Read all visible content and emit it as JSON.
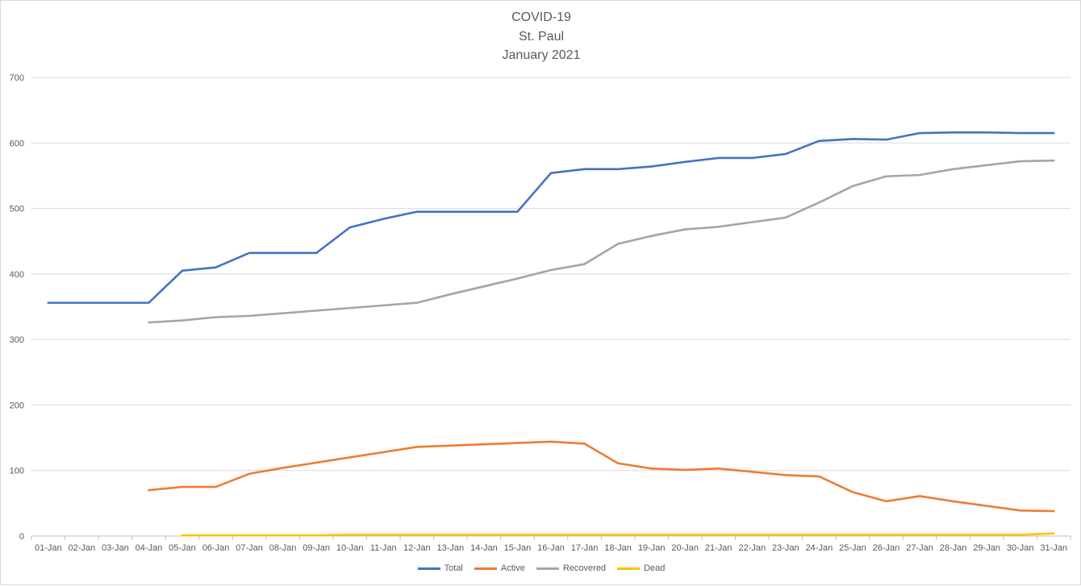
{
  "chart_data": {
    "type": "line",
    "title_lines": [
      "COVID-19",
      "St. Paul",
      "January 2021"
    ],
    "categories": [
      "01-Jan",
      "02-Jan",
      "03-Jan",
      "04-Jan",
      "05-Jan",
      "06-Jan",
      "07-Jan",
      "08-Jan",
      "09-Jan",
      "10-Jan",
      "11-Jan",
      "12-Jan",
      "13-Jan",
      "14-Jan",
      "15-Jan",
      "16-Jan",
      "17-Jan",
      "18-Jan",
      "19-Jan",
      "20-Jan",
      "21-Jan",
      "22-Jan",
      "23-Jan",
      "24-Jan",
      "25-Jan",
      "26-Jan",
      "27-Jan",
      "28-Jan",
      "29-Jan",
      "30-Jan",
      "31-Jan"
    ],
    "ylim": [
      0,
      700
    ],
    "yticks": [
      0,
      100,
      200,
      300,
      400,
      500,
      600,
      700
    ],
    "grid": true,
    "legend_position": "bottom",
    "series": [
      {
        "name": "Total",
        "color": "#4472c4",
        "values": [
          356,
          356,
          356,
          356,
          405,
          410,
          432,
          432,
          432,
          471,
          484,
          495,
          495,
          495,
          495,
          554,
          560,
          560,
          564,
          571,
          577,
          577,
          583,
          603,
          606,
          605,
          615,
          616,
          616,
          615,
          615
        ]
      },
      {
        "name": "Active",
        "color": "#ed7d31",
        "values": [
          null,
          null,
          null,
          70,
          75,
          75,
          95,
          104,
          112,
          120,
          128,
          136,
          138,
          140,
          142,
          144,
          141,
          111,
          103,
          101,
          103,
          98,
          93,
          91,
          67,
          53,
          61,
          53,
          46,
          39,
          38
        ]
      },
      {
        "name": "Recovered",
        "color": "#a5a5a5",
        "values": [
          null,
          null,
          null,
          326,
          329,
          334,
          336,
          340,
          344,
          348,
          352,
          356,
          369,
          381,
          393,
          406,
          415,
          446,
          458,
          468,
          472,
          479,
          486,
          509,
          534,
          549,
          551,
          560,
          566,
          572,
          573
        ]
      },
      {
        "name": "Dead",
        "color": "#ffc000",
        "values": [
          null,
          null,
          null,
          null,
          1,
          1,
          1,
          1,
          1,
          2,
          2,
          2,
          2,
          2,
          2,
          2,
          2,
          2,
          2,
          2,
          2,
          2,
          2,
          2,
          2,
          2,
          2,
          2,
          2,
          2,
          4
        ]
      }
    ]
  }
}
